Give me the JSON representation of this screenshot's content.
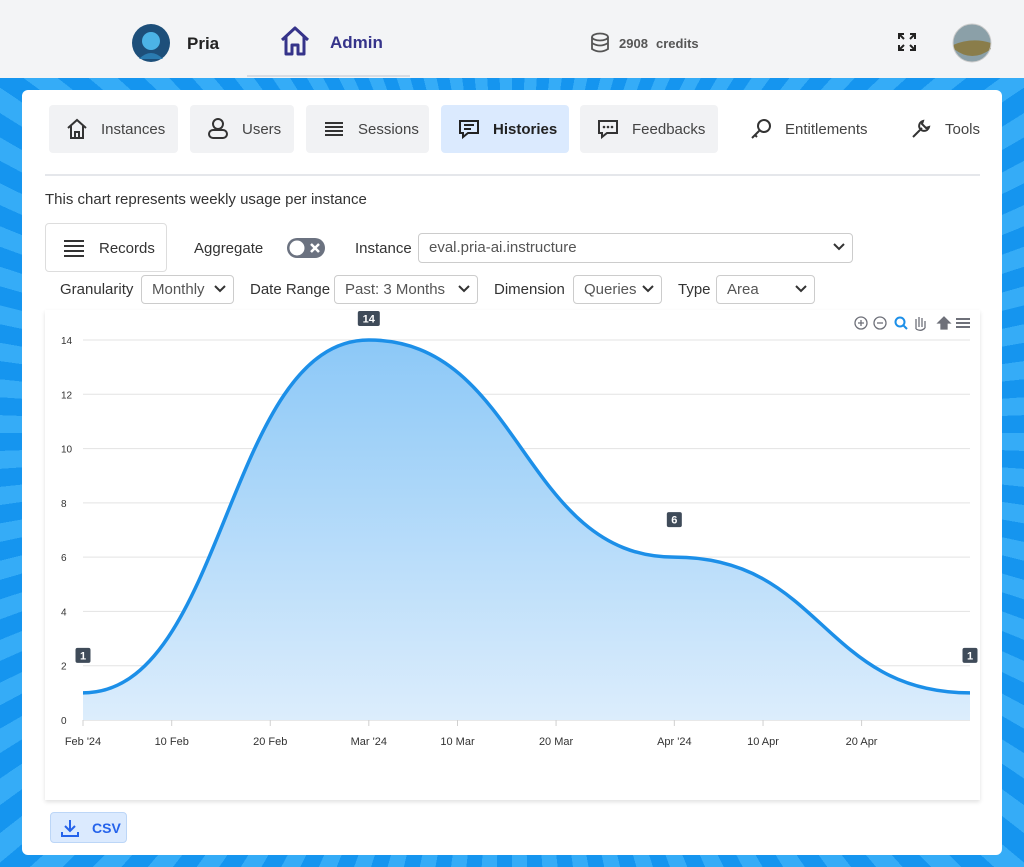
{
  "header": {
    "user": "Pria",
    "nav": "Admin",
    "credits": {
      "amount": 2908,
      "label": "credits"
    }
  },
  "tabs": [
    "Instances",
    "Users",
    "Sessions",
    "Histories",
    "Feedbacks",
    "Entitlements",
    "Tools"
  ],
  "description": "This chart represents weekly usage per instance",
  "controls": {
    "records": "Records",
    "aggregate": "Aggregate",
    "instance": {
      "label": "Instance",
      "value": "eval.pria-ai.instructure"
    },
    "granularity": {
      "label": "Granularity",
      "value": "Monthly"
    },
    "date_range": {
      "label": "Date Range",
      "value": "Past: 3 Months"
    },
    "dimension": {
      "label": "Dimension",
      "value": "Queries"
    },
    "chart_type": {
      "label": "Type",
      "value": "Area"
    }
  },
  "chart_data": {
    "type": "area",
    "x": [
      "2024-02-01",
      "2024-03-01",
      "2024-04-01",
      "2024-05-01"
    ],
    "values": [
      1,
      14,
      6,
      1
    ],
    "color": "#1c8fe8",
    "xlim": [
      "2024-02-01",
      "2024-05-01"
    ],
    "xticks": [
      {
        "value": "2024-02-01",
        "label": "Feb '24"
      },
      {
        "value": "2024-02-10",
        "label": "10 Feb"
      },
      {
        "value": "2024-02-20",
        "label": "20 Feb"
      },
      {
        "value": "2024-03-01",
        "label": "Mar '24"
      },
      {
        "value": "2024-03-10",
        "label": "10 Mar"
      },
      {
        "value": "2024-03-20",
        "label": "20 Mar"
      },
      {
        "value": "2024-04-01",
        "label": "Apr '24"
      },
      {
        "value": "2024-04-10",
        "label": "10 Apr"
      },
      {
        "value": "2024-04-20",
        "label": "20 Apr"
      }
    ],
    "ylim": [
      0,
      14
    ],
    "yticks": [
      0,
      2,
      4,
      6,
      8,
      10,
      12,
      14
    ],
    "grid": true
  },
  "export": "CSV"
}
